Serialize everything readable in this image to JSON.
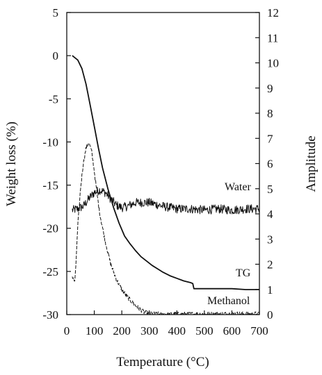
{
  "chart_data": {
    "type": "line",
    "title": "",
    "xlabel": "Temperature (°C)",
    "ylabel_left": "Weight loss (%)",
    "ylabel_right": "Amplitude",
    "xlim": [
      0,
      700
    ],
    "ylim_left": [
      -30,
      5
    ],
    "ylim_right": [
      0,
      12
    ],
    "x_ticks": [
      0,
      100,
      200,
      300,
      400,
      500,
      600,
      700
    ],
    "y_left_ticks": [
      5,
      0,
      -5,
      -10,
      -15,
      -20,
      -25,
      -30
    ],
    "y_right_ticks": [
      12,
      11,
      10,
      9,
      8,
      7,
      6,
      5,
      4,
      3,
      2,
      1,
      0
    ],
    "grid": false,
    "legend": "none",
    "series": [
      {
        "name": "TG",
        "axis": "left",
        "style": "solid",
        "color": "#111111",
        "x": [
          20,
          40,
          55,
          70,
          85,
          100,
          115,
          130,
          150,
          170,
          190,
          210,
          230,
          250,
          270,
          290,
          310,
          330,
          350,
          375,
          400,
          425,
          450,
          458,
          462,
          470,
          500,
          550,
          600,
          650,
          700
        ],
        "y": [
          0,
          -0.5,
          -1.5,
          -3.3,
          -5.7,
          -8.2,
          -10.7,
          -13.0,
          -15.5,
          -17.6,
          -19.4,
          -20.9,
          -21.8,
          -22.6,
          -23.3,
          -23.8,
          -24.3,
          -24.7,
          -25.1,
          -25.5,
          -25.8,
          -26.1,
          -26.3,
          -26.4,
          -27.0,
          -27.0,
          -27.0,
          -27.0,
          -27.0,
          -27.1,
          -27.1
        ]
      },
      {
        "name": "Water",
        "axis": "right",
        "style": "noisy-solid",
        "color": "#111111",
        "x": [
          20,
          40,
          60,
          80,
          100,
          120,
          140,
          160,
          180,
          200,
          220,
          250,
          280,
          300,
          350,
          400,
          450,
          500,
          550,
          600,
          650,
          700
        ],
        "y": [
          4.15,
          4.2,
          4.3,
          4.6,
          4.85,
          4.95,
          4.85,
          4.6,
          4.35,
          4.25,
          4.3,
          4.45,
          4.45,
          4.45,
          4.3,
          4.2,
          4.2,
          4.15,
          4.2,
          4.15,
          4.2,
          4.2
        ]
      },
      {
        "name": "Methanol",
        "axis": "right",
        "style": "noisy-dashed",
        "color": "#111111",
        "x": [
          20,
          30,
          40,
          50,
          60,
          70,
          80,
          90,
          100,
          110,
          120,
          140,
          160,
          180,
          200,
          220,
          250,
          280,
          300,
          350,
          400,
          500,
          600,
          700
        ],
        "y": [
          1.5,
          1.3,
          3.5,
          5.0,
          6.0,
          6.6,
          6.85,
          6.5,
          5.7,
          4.8,
          4.0,
          2.9,
          2.0,
          1.4,
          1.0,
          0.7,
          0.35,
          0.1,
          0.03,
          0.02,
          0.02,
          0.02,
          0.03,
          0.03
        ]
      }
    ],
    "labels": {
      "water": "Water",
      "tg": "TG",
      "methanol": "Methanol"
    }
  }
}
